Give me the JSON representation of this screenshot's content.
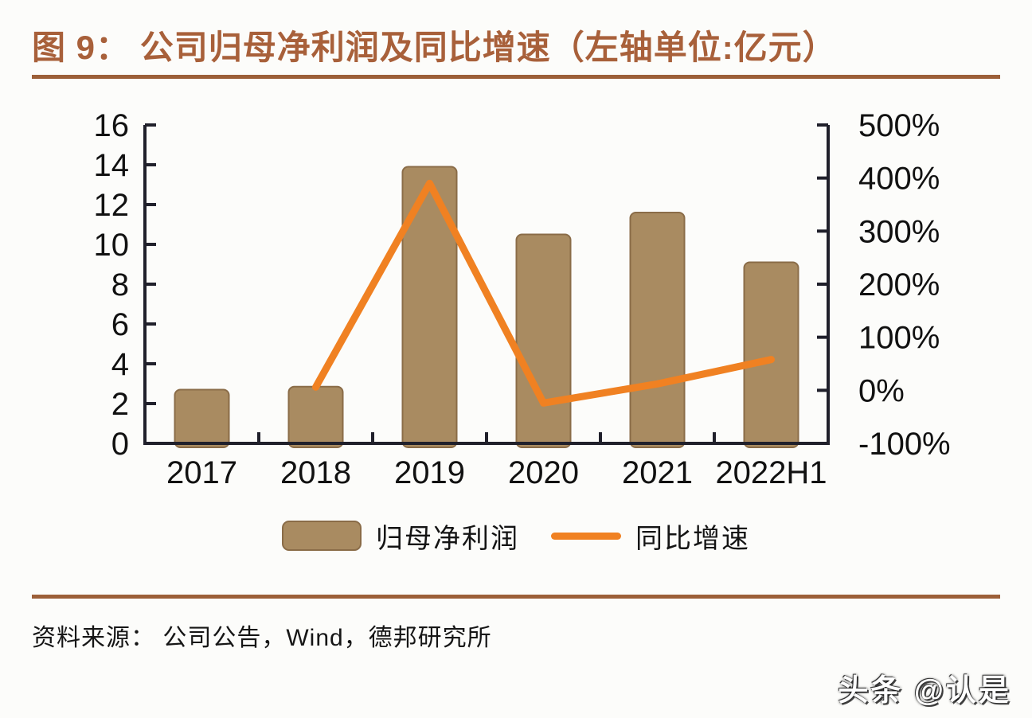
{
  "header": {
    "title": "图 9： 公司归母净利润及同比增速（左轴单位:亿元）"
  },
  "legend": {
    "bar": {
      "label": "归母净利润"
    },
    "line": {
      "label": "同比增速"
    }
  },
  "footer": {
    "source": "资料来源： 公司公告，Wind，德邦研究所",
    "watermark": "头条 @认是"
  },
  "colors": {
    "background": "#FCFCFA",
    "title": "#A8603A",
    "rule": "#9C5F38",
    "bar_fill": "#A98B61",
    "bar_edge": "#8A6C48",
    "line": "#F08122",
    "axis": "#20202B",
    "tick_text": "#111111",
    "watermark_text": "#FFFFFF"
  },
  "chart_data": {
    "type": "combo",
    "title": "公司归母净利润及同比增速",
    "categories": [
      "2017",
      "2018",
      "2019",
      "2020",
      "2021",
      "2022H1"
    ],
    "series": [
      {
        "name": "归母净利润",
        "type": "bar",
        "axis": "left",
        "unit": "亿元",
        "values": [
          2.7,
          2.85,
          13.9,
          10.5,
          11.6,
          9.1
        ]
      },
      {
        "name": "同比增速",
        "type": "line",
        "axis": "right",
        "unit": "%",
        "values": [
          null,
          6,
          390,
          -24,
          12,
          58
        ]
      }
    ],
    "left_axis": {
      "min": 0,
      "max": 16,
      "step": 2,
      "tick_labels": [
        "0",
        "2",
        "4",
        "6",
        "8",
        "10",
        "12",
        "14",
        "16"
      ],
      "unit": "亿元"
    },
    "right_axis": {
      "min": -100,
      "max": 500,
      "step": 100,
      "tick_labels": [
        "-100%",
        "0%",
        "100%",
        "200%",
        "300%",
        "400%",
        "500%"
      ],
      "unit": "%"
    },
    "grid": false,
    "legend_position": "bottom"
  }
}
